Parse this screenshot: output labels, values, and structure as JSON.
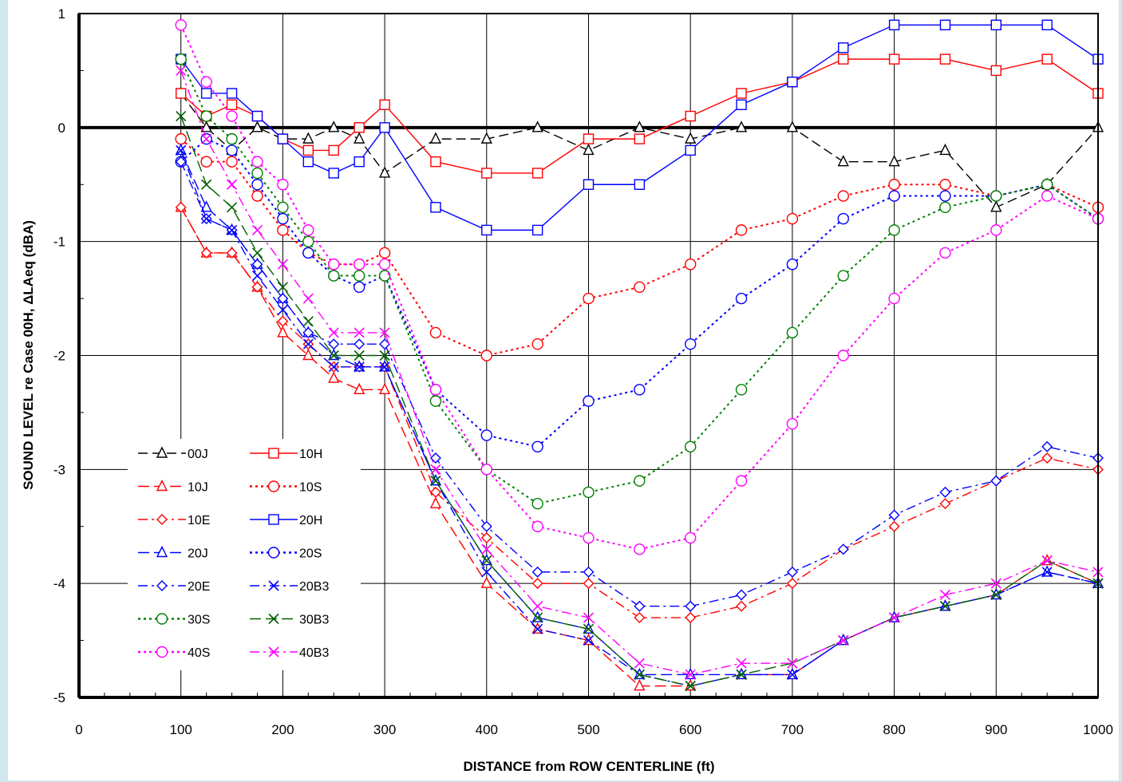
{
  "chart_data": {
    "type": "line",
    "xlabel": "DISTANCE from ROW CENTERLINE (ft)",
    "ylabel": "SOUND LEVEL  re Case 00H, ΔLAeq (dBA)",
    "xlim": [
      0,
      1000
    ],
    "ylim": [
      -5,
      1
    ],
    "xticks": [
      "0",
      "100",
      "200",
      "300",
      "400",
      "500",
      "600",
      "700",
      "800",
      "900",
      "1000"
    ],
    "yticks": [
      "1",
      "0",
      "-1",
      "-2",
      "-3",
      "-4",
      "-5"
    ],
    "grid": true,
    "legend_position": "lower-left",
    "x": [
      100,
      125,
      150,
      175,
      200,
      225,
      250,
      275,
      300,
      350,
      400,
      450,
      500,
      550,
      600,
      650,
      700,
      750,
      800,
      850,
      900,
      950,
      1000
    ],
    "series": [
      {
        "name": "00J",
        "color": "#000000",
        "dash": "dash",
        "marker": "triangle",
        "values": [
          0.3,
          0.0,
          -0.2,
          0.0,
          -0.1,
          -0.1,
          0.0,
          -0.1,
          -0.4,
          -0.1,
          -0.1,
          0.0,
          -0.2,
          0.0,
          -0.1,
          0.0,
          0.0,
          -0.3,
          -0.3,
          -0.2,
          -0.7,
          -0.5,
          0.0
        ]
      },
      {
        "name": "10H",
        "color": "#ff0000",
        "dash": "solid",
        "marker": "square",
        "values": [
          0.3,
          0.1,
          0.2,
          0.1,
          -0.1,
          -0.2,
          -0.2,
          0.0,
          0.2,
          -0.3,
          -0.4,
          -0.4,
          -0.1,
          -0.1,
          0.1,
          0.3,
          0.4,
          0.6,
          0.6,
          0.6,
          0.5,
          0.6,
          0.3
        ]
      },
      {
        "name": "10J",
        "color": "#ff0000",
        "dash": "longdash",
        "marker": "triangle",
        "values": [
          -0.7,
          -1.1,
          -1.1,
          -1.4,
          -1.8,
          -2.0,
          -2.2,
          -2.3,
          -2.3,
          -3.3,
          -4.0,
          -4.4,
          -4.5,
          -4.9,
          -4.9,
          -4.8,
          -4.8,
          -4.5,
          -4.3,
          -4.2,
          -4.1,
          -3.8,
          -4.0
        ]
      },
      {
        "name": "10S",
        "color": "#ff0000",
        "dash": "dot",
        "marker": "circle",
        "values": [
          -0.1,
          -0.3,
          -0.3,
          -0.6,
          -0.9,
          -1.1,
          -1.2,
          -1.2,
          -1.1,
          -1.8,
          -2.0,
          -1.9,
          -1.5,
          -1.4,
          -1.2,
          -0.9,
          -0.8,
          -0.6,
          -0.5,
          -0.5,
          -0.6,
          -0.5,
          -0.7
        ]
      },
      {
        "name": "10E",
        "color": "#ff0000",
        "dash": "dashdot",
        "marker": "diamond",
        "values": [
          -0.7,
          -1.1,
          -1.1,
          -1.4,
          -1.7,
          -1.9,
          -2.1,
          -2.1,
          -2.1,
          -3.2,
          -3.6,
          -4.0,
          -4.0,
          -4.3,
          -4.3,
          -4.2,
          -4.0,
          -3.7,
          -3.5,
          -3.3,
          -3.1,
          -2.9,
          -3.0
        ]
      },
      {
        "name": "20H",
        "color": "#0000ff",
        "dash": "solid",
        "marker": "square",
        "values": [
          0.6,
          0.3,
          0.3,
          0.1,
          -0.1,
          -0.3,
          -0.4,
          -0.3,
          0.0,
          -0.7,
          -0.9,
          -0.9,
          -0.5,
          -0.5,
          -0.2,
          0.2,
          0.4,
          0.7,
          0.9,
          0.9,
          0.9,
          0.9,
          0.6
        ]
      },
      {
        "name": "20J",
        "color": "#0000ff",
        "dash": "longdash",
        "marker": "triangle",
        "values": [
          -0.2,
          -0.7,
          -0.9,
          -1.2,
          -1.5,
          -1.8,
          -2.0,
          -2.1,
          -2.1,
          -3.1,
          -3.8,
          -4.3,
          -4.4,
          -4.8,
          -4.8,
          -4.8,
          -4.8,
          -4.5,
          -4.3,
          -4.2,
          -4.1,
          -3.9,
          -4.0
        ]
      },
      {
        "name": "20S",
        "color": "#0000ff",
        "dash": "dot",
        "marker": "circle",
        "values": [
          -0.3,
          -0.1,
          -0.2,
          -0.5,
          -0.8,
          -1.1,
          -1.3,
          -1.4,
          -1.3,
          -2.3,
          -2.7,
          -2.8,
          -2.4,
          -2.3,
          -1.9,
          -1.5,
          -1.2,
          -0.8,
          -0.6,
          -0.6,
          -0.6,
          -0.5,
          -0.8
        ]
      },
      {
        "name": "20E",
        "color": "#0000ff",
        "dash": "dashdot",
        "marker": "diamond",
        "values": [
          -0.3,
          -0.8,
          -0.9,
          -1.2,
          -1.5,
          -1.8,
          -1.9,
          -1.9,
          -1.9,
          -2.9,
          -3.5,
          -3.9,
          -3.9,
          -4.2,
          -4.2,
          -4.1,
          -3.9,
          -3.7,
          -3.4,
          -3.2,
          -3.1,
          -2.8,
          -2.9
        ]
      },
      {
        "name": "20B3",
        "color": "#0000ff",
        "dash": "dashdot",
        "marker": "x",
        "values": [
          -0.2,
          -0.8,
          -0.9,
          -1.3,
          -1.6,
          -1.9,
          -2.1,
          -2.1,
          -2.1,
          -3.1,
          -3.9,
          -4.4,
          -4.5,
          -4.8,
          -4.9,
          -4.8,
          -4.8,
          -4.5,
          -4.3,
          -4.2,
          -4.1,
          -3.9,
          -4.0
        ]
      },
      {
        "name": "30S",
        "color": "#008000",
        "dash": "dot",
        "marker": "circle",
        "values": [
          0.6,
          0.1,
          -0.1,
          -0.4,
          -0.7,
          -1.0,
          -1.3,
          -1.3,
          -1.3,
          -2.4,
          -3.0,
          -3.3,
          -3.2,
          -3.1,
          -2.8,
          -2.3,
          -1.8,
          -1.3,
          -0.9,
          -0.7,
          -0.6,
          -0.5,
          -0.8
        ]
      },
      {
        "name": "30B3",
        "color": "#006000",
        "dash": "longdash",
        "marker": "x",
        "values": [
          0.1,
          -0.5,
          -0.7,
          -1.1,
          -1.4,
          -1.7,
          -2.0,
          -2.0,
          -2.0,
          -3.1,
          -3.8,
          -4.3,
          -4.4,
          -4.8,
          -4.9,
          -4.8,
          -4.7,
          -4.5,
          -4.3,
          -4.2,
          -4.1,
          -3.8,
          -4.0
        ]
      },
      {
        "name": "40S",
        "color": "#ff00ff",
        "dash": "dot",
        "marker": "circle",
        "values": [
          0.9,
          0.4,
          0.1,
          -0.3,
          -0.5,
          -0.9,
          -1.2,
          -1.2,
          -1.2,
          -2.3,
          -3.0,
          -3.5,
          -3.6,
          -3.7,
          -3.6,
          -3.1,
          -2.6,
          -2.0,
          -1.5,
          -1.1,
          -0.9,
          -0.6,
          -0.8
        ]
      },
      {
        "name": "40B3",
        "color": "#ff00ff",
        "dash": "dashdot",
        "marker": "x",
        "values": [
          0.5,
          -0.1,
          -0.5,
          -0.9,
          -1.2,
          -1.5,
          -1.8,
          -1.8,
          -1.8,
          -3.0,
          -3.7,
          -4.2,
          -4.3,
          -4.7,
          -4.8,
          -4.7,
          -4.7,
          -4.5,
          -4.3,
          -4.1,
          -4.0,
          -3.8,
          -3.9
        ]
      }
    ]
  }
}
